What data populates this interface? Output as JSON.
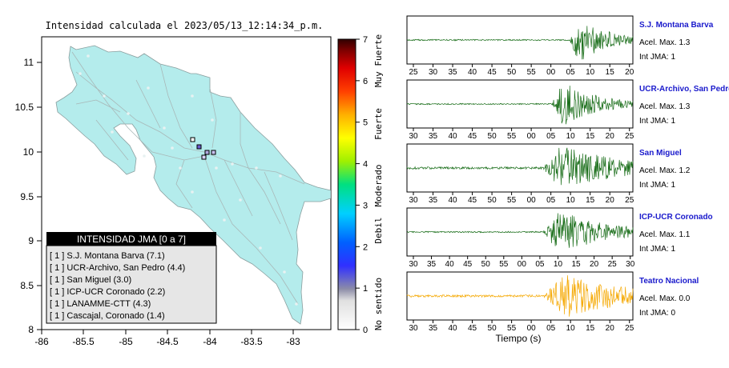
{
  "map": {
    "title": "Intensidad calculada el 2023/05/13_12:14:34_p.m.",
    "x_ticks": [
      "-86",
      "-85.5",
      "-85",
      "-84.5",
      "-84",
      "-83.5",
      "-83"
    ],
    "y_ticks": [
      "11",
      "10.5",
      "10",
      "9.5",
      "9",
      "8.5",
      "8"
    ],
    "land_color": "#b4ecec",
    "legend": {
      "header": "INTENSIDAD JMA [0 a 7]",
      "items": [
        "[ 1 ]  S.J. Montana Barva (7.1)",
        "[ 1 ]  UCR-Archivo, San Pedro (4.4)",
        "[ 1 ]  San Miguel (3.0)",
        "[ 1 ]  ICP-UCR Coronado (2.2)",
        "[ 1 ]  LANAMME-CTT (4.3)",
        "[ 1 ]  Cascajal, Coronado (1.4)"
      ]
    }
  },
  "colorbar": {
    "ticks": [
      "7",
      "6",
      "5",
      "4",
      "3",
      "2",
      "1",
      "0"
    ],
    "labels": [
      "Muy Fuerte",
      "Fuerte",
      "Moderado",
      "Debil",
      "No sentido"
    ]
  },
  "seismograms": {
    "xlabel": "Tiempo (s)",
    "panels": [
      {
        "station": "S.J. Montana Barva",
        "accel": "Acel. Max. 1.3",
        "jma": "Int JMA: 1",
        "color": "#1a6e1a",
        "ticks": [
          "25",
          "30",
          "35",
          "40",
          "45",
          "50",
          "55",
          "00",
          "05",
          "10",
          "15",
          "20"
        ],
        "onset": 0.72,
        "peak": 0.76,
        "decay": 0.14,
        "noise": 0.03
      },
      {
        "station": "UCR-Archivo, San Pedro",
        "accel": "Acel. Max. 1.3",
        "jma": "Int JMA: 1",
        "color": "#1a6e1a",
        "ticks": [
          "30",
          "35",
          "40",
          "45",
          "50",
          "55",
          "00",
          "05",
          "10",
          "15",
          "20",
          "25"
        ],
        "onset": 0.64,
        "peak": 0.69,
        "decay": 0.16,
        "noise": 0.03
      },
      {
        "station": "San Miguel",
        "accel": "Acel. Max. 1.2",
        "jma": "Int JMA: 1",
        "color": "#1a6e1a",
        "ticks": [
          "30",
          "35",
          "40",
          "45",
          "50",
          "55",
          "00",
          "05",
          "10",
          "15",
          "20",
          "25"
        ],
        "onset": 0.6,
        "peak": 0.68,
        "decay": 0.3,
        "noise": 0.05
      },
      {
        "station": "ICP-UCR Coronado",
        "accel": "Acel. Max. 1.1",
        "jma": "Int JMA: 1",
        "color": "#1a6e1a",
        "ticks": [
          "30",
          "35",
          "40",
          "45",
          "50",
          "55",
          "00",
          "05",
          "10",
          "15",
          "20",
          "25",
          "30"
        ],
        "onset": 0.6,
        "peak": 0.67,
        "decay": 0.22,
        "noise": 0.03
      },
      {
        "station": "Teatro Nacional",
        "accel": "Acel. Max. 0.0",
        "jma": "Int JMA: 0",
        "color": "#f5a800",
        "ticks": [
          "30",
          "35",
          "40",
          "45",
          "50",
          "55",
          "00",
          "05",
          "10",
          "15",
          "20",
          "25"
        ],
        "onset": 0.6,
        "peak": 0.7,
        "decay": 0.3,
        "noise": 0.05
      }
    ]
  }
}
